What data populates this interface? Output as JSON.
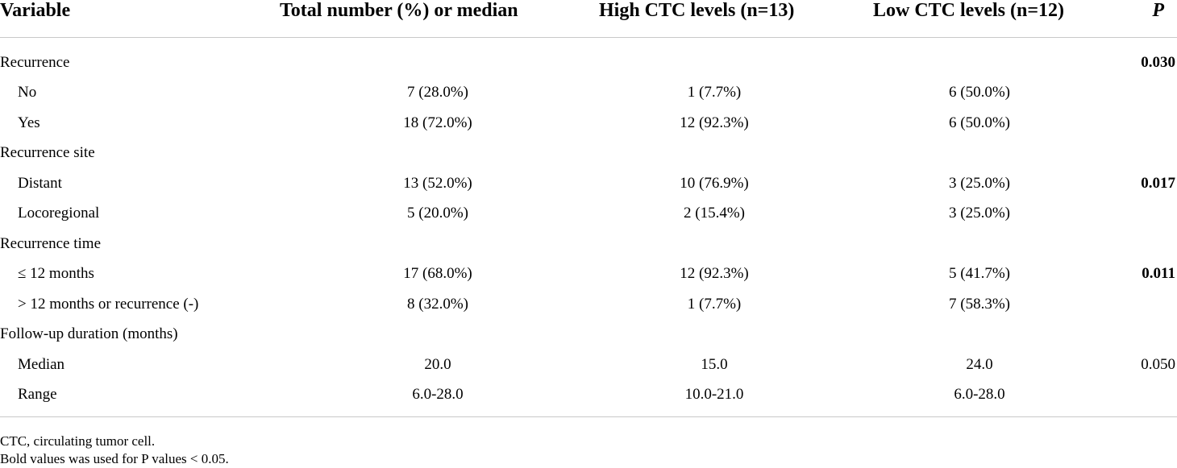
{
  "table": {
    "headers": {
      "variable": "Variable",
      "total": "Total number (%) or median",
      "high": "High CTC levels (n=13)",
      "low": "Low CTC levels (n=12)",
      "p": "P"
    },
    "rows": [
      {
        "variable": "Recurrence",
        "total": "",
        "high": "",
        "low": "",
        "p": "0.030",
        "p_bold": true,
        "indent": false
      },
      {
        "variable": "No",
        "total": "7 (28.0%)",
        "high": "1 (7.7%)",
        "low": "6 (50.0%)",
        "p": "",
        "p_bold": false,
        "indent": true
      },
      {
        "variable": "Yes",
        "total": "18 (72.0%)",
        "high": "12 (92.3%)",
        "low": "6 (50.0%)",
        "p": "",
        "p_bold": false,
        "indent": true
      },
      {
        "variable": "Recurrence site",
        "total": "",
        "high": "",
        "low": "",
        "p": "",
        "p_bold": false,
        "indent": false
      },
      {
        "variable": "Distant",
        "total": "13 (52.0%)",
        "high": "10 (76.9%)",
        "low": "3 (25.0%)",
        "p": "0.017",
        "p_bold": true,
        "indent": true
      },
      {
        "variable": "Locoregional",
        "total": "5 (20.0%)",
        "high": "2 (15.4%)",
        "low": "3 (25.0%)",
        "p": "",
        "p_bold": false,
        "indent": true
      },
      {
        "variable": "Recurrence time",
        "total": "",
        "high": "",
        "low": "",
        "p": "",
        "p_bold": false,
        "indent": false
      },
      {
        "variable": "≤ 12 months",
        "total": "17 (68.0%)",
        "high": "12 (92.3%)",
        "low": "5 (41.7%)",
        "p": "0.011",
        "p_bold": true,
        "indent": true
      },
      {
        "variable": "> 12 months or recurrence (-)",
        "total": "8 (32.0%)",
        "high": "1 (7.7%)",
        "low": "7 (58.3%)",
        "p": "",
        "p_bold": false,
        "indent": true
      },
      {
        "variable": "Follow-up duration (months)",
        "total": "",
        "high": "",
        "low": "",
        "p": "",
        "p_bold": false,
        "indent": false
      },
      {
        "variable": "Median",
        "total": "20.0",
        "high": "15.0",
        "low": "24.0",
        "p": "0.050",
        "p_bold": false,
        "indent": true
      },
      {
        "variable": "Range",
        "total": "6.0-28.0",
        "high": "10.0-21.0",
        "low": "6.0-28.0",
        "p": "",
        "p_bold": false,
        "indent": true
      }
    ]
  },
  "footnotes": [
    "CTC, circulating tumor cell.",
    "Bold values was used for P values < 0.05."
  ]
}
